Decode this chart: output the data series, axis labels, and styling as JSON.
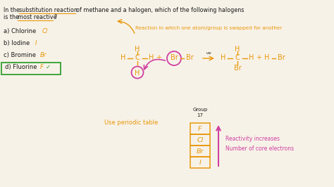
{
  "bg_color": "#f7f2e8",
  "orange": "#e8980a",
  "magenta": "#d040a0",
  "green": "#30a030",
  "dark": "#1a1a1a",
  "fig_width": 4.74,
  "fig_height": 2.66,
  "dpi": 100,
  "question_line1": "In the  substitution reaction  of methane and a halogen, which of the following halogens",
  "question_line2": "is the  most reactive ?",
  "choices": [
    "a) Chlorine  Cl",
    "b) Iodine  I",
    "c) Bromine  Br",
    "d) Fluorine  F"
  ],
  "elements": [
    "F",
    "Cl",
    "Br",
    "I"
  ],
  "group_label": "Group\n17",
  "reactivity_text1": "Reactivity increases",
  "reactivity_text2": "Number of core electrons",
  "use_periodic": "Use periodic table",
  "reaction_note": "Reaction in which one atom/group is swapped for another"
}
